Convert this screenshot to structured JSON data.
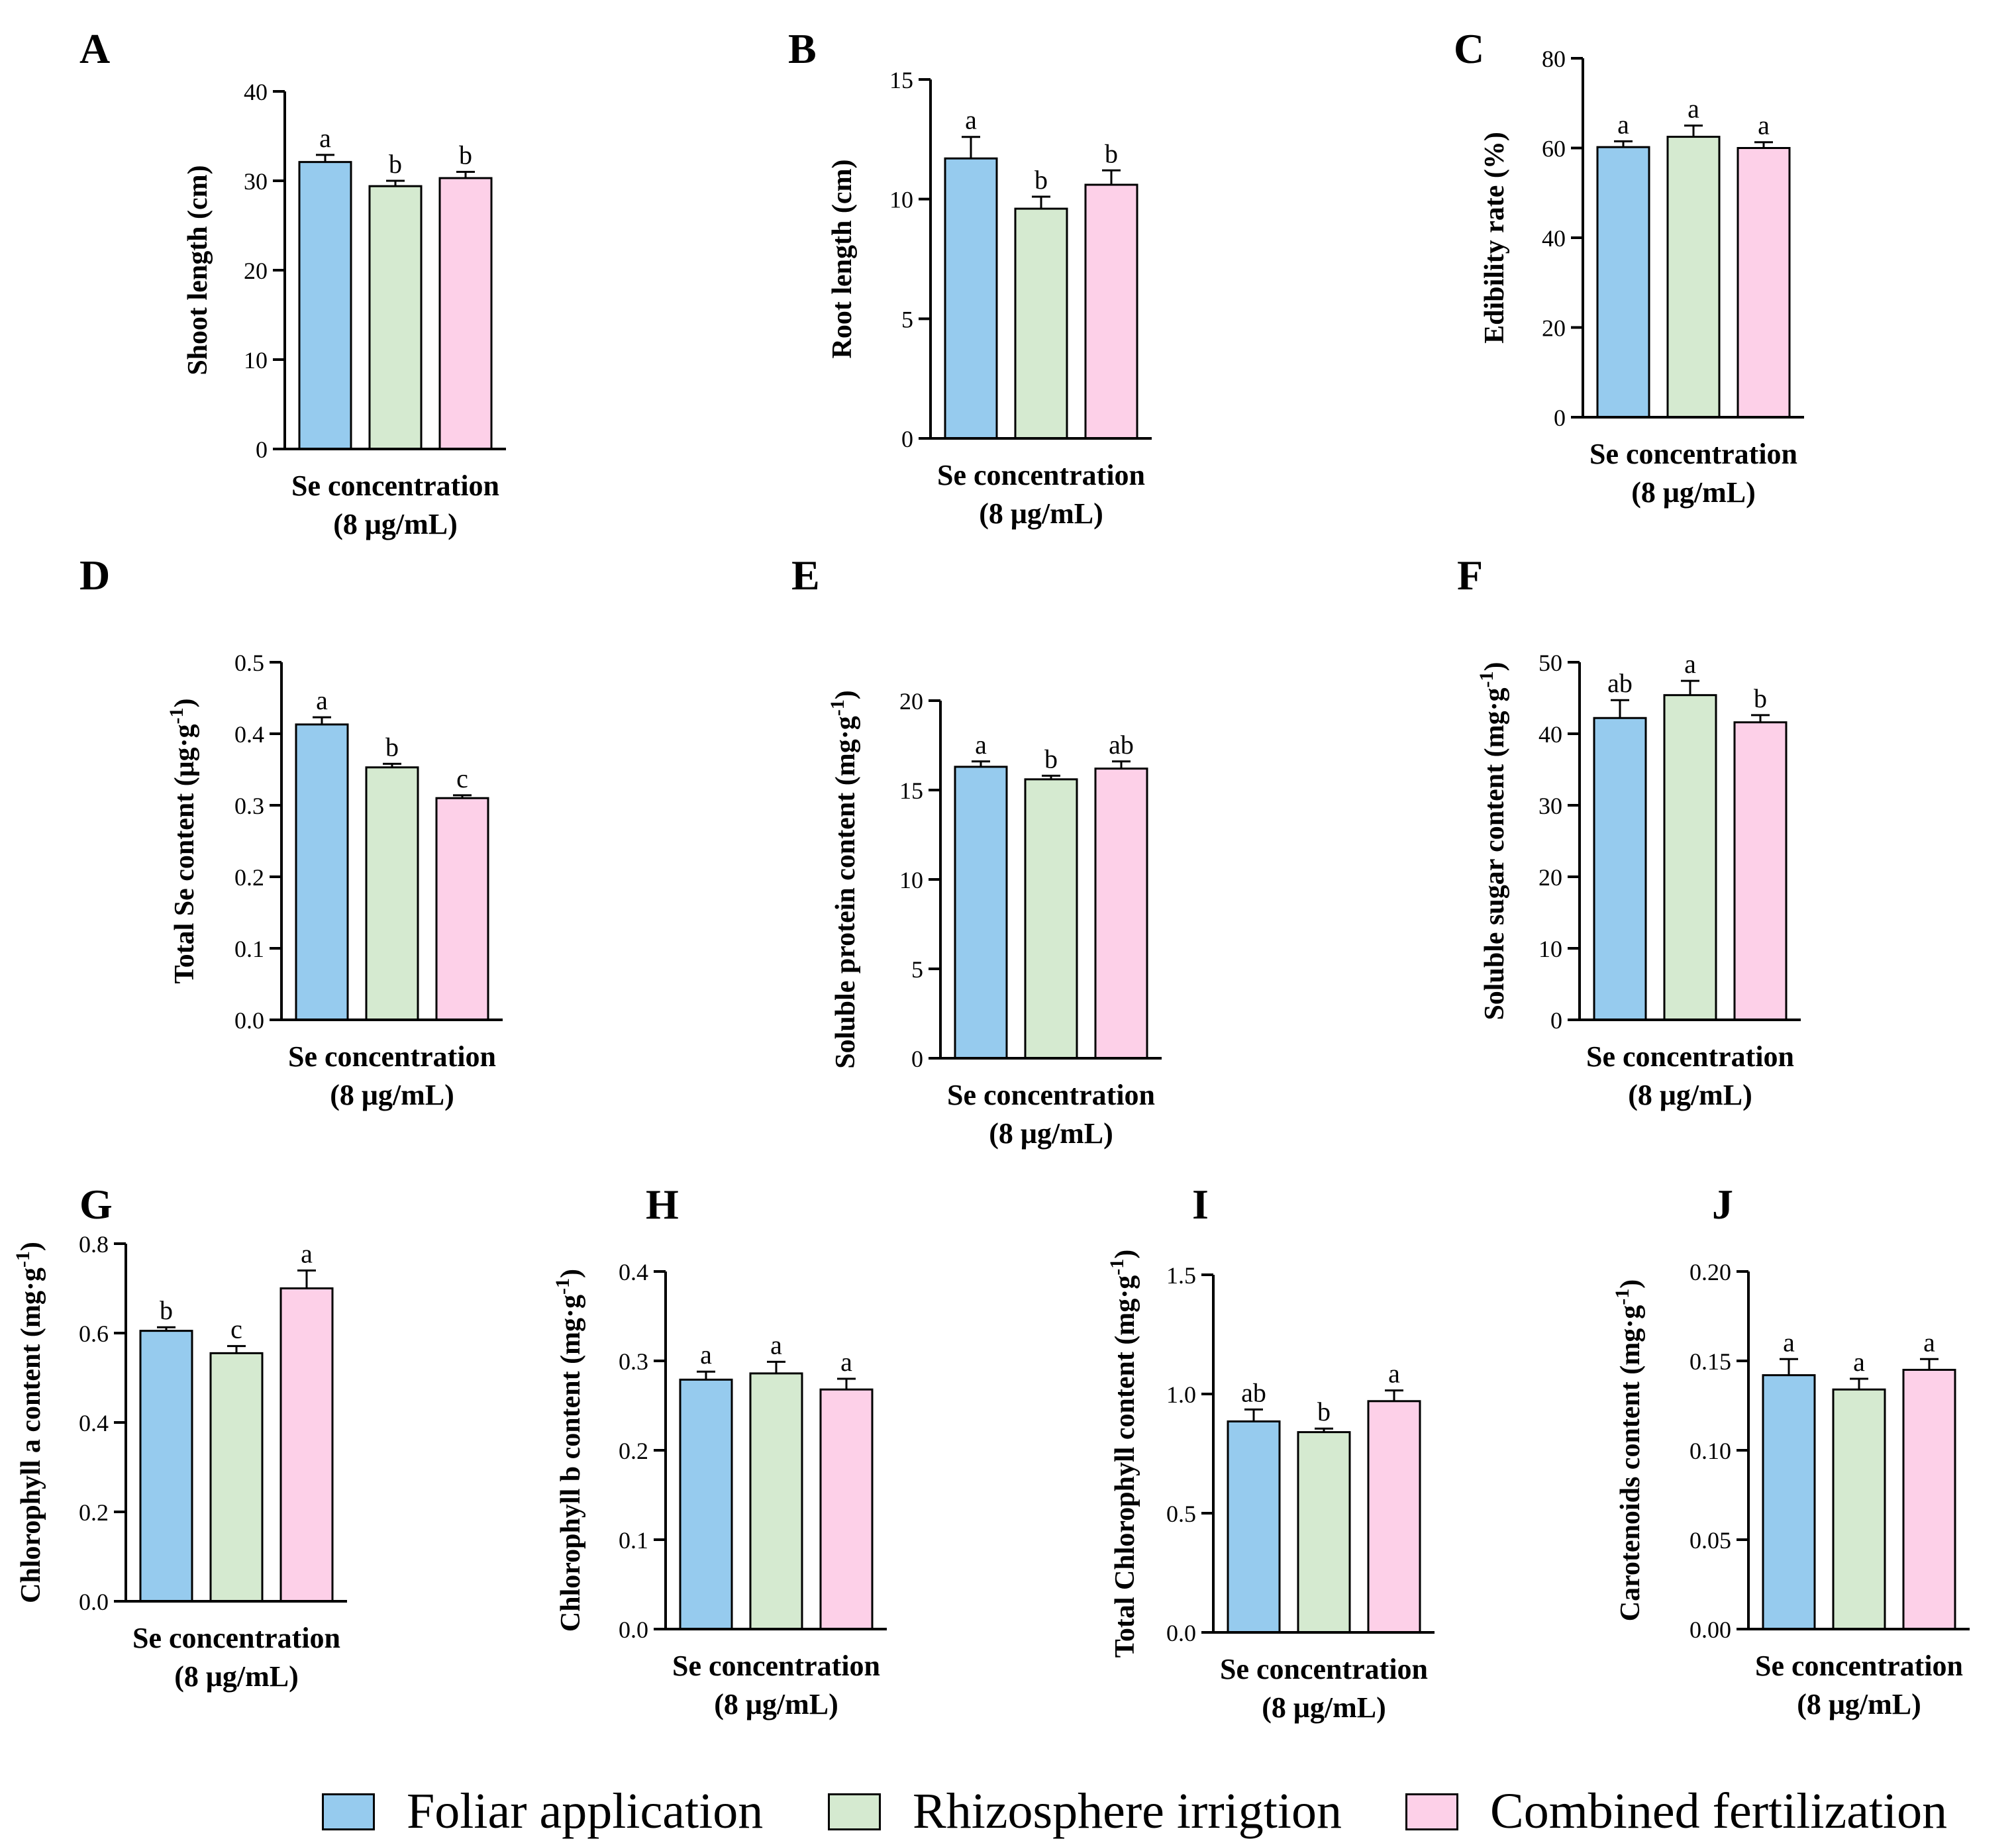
{
  "figure": {
    "legend": [
      {
        "name": "Foliar application",
        "color": "#96cbee"
      },
      {
        "name": "Rhizosphere irrigtion",
        "color": "#d5ead0"
      },
      {
        "name": "Combined fertilization",
        "color": "#fdd0e8"
      }
    ]
  },
  "chart_data": [
    {
      "panel": "A",
      "type": "bar",
      "ylabel": "Shoot length (cm)",
      "xlabel": [
        "Se concentration",
        "(8 μg/mL)"
      ],
      "ylim": [
        0,
        40
      ],
      "yticks": [
        "0",
        "10",
        "20",
        "30",
        "40"
      ],
      "values": [
        32.1,
        29.4,
        30.3
      ],
      "errors": [
        0.8,
        0.6,
        0.7
      ],
      "letters": [
        "a",
        "b",
        "b"
      ]
    },
    {
      "panel": "B",
      "type": "bar",
      "ylabel": "Root length (cm)",
      "xlabel": [
        "Se concentration",
        "(8 μg/mL)"
      ],
      "ylim": [
        0,
        15
      ],
      "yticks": [
        "0",
        "5",
        "10",
        "15"
      ],
      "values": [
        11.7,
        9.6,
        10.6
      ],
      "errors": [
        0.9,
        0.5,
        0.6
      ],
      "letters": [
        "a",
        "b",
        "b"
      ]
    },
    {
      "panel": "C",
      "type": "bar",
      "ylabel": "Edibility rate (%)",
      "xlabel": [
        "Se concentration",
        "(8 μg/mL)"
      ],
      "ylim": [
        0,
        80
      ],
      "yticks": [
        "0",
        "20",
        "40",
        "60",
        "80"
      ],
      "values": [
        60.2,
        62.5,
        60.0
      ],
      "errors": [
        1.3,
        2.5,
        1.3
      ],
      "letters": [
        "a",
        "a",
        "a"
      ]
    },
    {
      "panel": "D",
      "type": "bar",
      "ylabel": "Total Se content (μg·g",
      "ylabel_sup": "-1",
      "ylabel_end": ")",
      "xlabel": [
        "Se concentration",
        "(8 μg/mL)"
      ],
      "ylim": [
        0,
        0.5
      ],
      "yticks": [
        "0.0",
        "0.1",
        "0.2",
        "0.3",
        "0.4",
        "0.5"
      ],
      "values": [
        0.413,
        0.353,
        0.31
      ],
      "errors": [
        0.01,
        0.005,
        0.004
      ],
      "letters": [
        "a",
        "b",
        "c"
      ]
    },
    {
      "panel": "E",
      "type": "bar",
      "ylabel": "Soluble protein content (mg·g",
      "ylabel_sup": "-1",
      "ylabel_end": ")",
      "xlabel": [
        "Se concentration",
        "(8 μg/mL)"
      ],
      "ylim": [
        0,
        20
      ],
      "yticks": [
        "0",
        "5",
        "10",
        "15",
        "20"
      ],
      "values": [
        16.3,
        15.6,
        16.2
      ],
      "errors": [
        0.3,
        0.2,
        0.4
      ],
      "letters": [
        "a",
        "b",
        "ab"
      ]
    },
    {
      "panel": "F",
      "type": "bar",
      "ylabel": "Soluble sugar content (mg·g",
      "ylabel_sup": "-1",
      "ylabel_end": ")",
      "xlabel": [
        "Se concentration",
        "(8 μg/mL)"
      ],
      "ylim": [
        0,
        50
      ],
      "yticks": [
        "0",
        "10",
        "20",
        "30",
        "40",
        "50"
      ],
      "values": [
        42.2,
        45.4,
        41.6
      ],
      "errors": [
        2.5,
        2.0,
        1.0
      ],
      "letters": [
        "ab",
        "a",
        "b"
      ]
    },
    {
      "panel": "G",
      "type": "bar",
      "ylabel": "Chlorophyll a content (mg·g",
      "ylabel_sup": "-1",
      "ylabel_end": ")",
      "xlabel": [
        "Se concentration",
        "(8 μg/mL)"
      ],
      "ylim": [
        0,
        0.8
      ],
      "yticks": [
        "0.0",
        "0.2",
        "0.4",
        "0.6",
        "0.8"
      ],
      "values": [
        0.605,
        0.555,
        0.7
      ],
      "errors": [
        0.008,
        0.016,
        0.04
      ],
      "letters": [
        "b",
        "c",
        "a"
      ]
    },
    {
      "panel": "H",
      "type": "bar",
      "ylabel": "Chlorophyll b content (mg·g",
      "ylabel_sup": "-1",
      "ylabel_end": ")",
      "xlabel": [
        "Se concentration",
        "(8 μg/mL)"
      ],
      "ylim": [
        0,
        0.4
      ],
      "yticks": [
        "0.0",
        "0.1",
        "0.2",
        "0.3",
        "0.4"
      ],
      "values": [
        0.279,
        0.286,
        0.268
      ],
      "errors": [
        0.009,
        0.013,
        0.012
      ],
      "letters": [
        "a",
        "a",
        "a"
      ]
    },
    {
      "panel": "I",
      "type": "bar",
      "ylabel": "Total Chlorophyll content (mg·g",
      "ylabel_sup": "-1",
      "ylabel_end": ")",
      "xlabel": [
        "Se concentration",
        "(8 μg/mL)"
      ],
      "ylim": [
        0,
        1.5
      ],
      "yticks": [
        "0.0",
        "0.5",
        "1.0",
        "1.5"
      ],
      "values": [
        0.885,
        0.84,
        0.97
      ],
      "errors": [
        0.05,
        0.015,
        0.045
      ],
      "letters": [
        "ab",
        "b",
        "a"
      ]
    },
    {
      "panel": "J",
      "type": "bar",
      "ylabel": "Carotenoids content (mg·g",
      "ylabel_sup": "-1",
      "ylabel_end": ")",
      "xlabel": [
        "Se concentration",
        "(8 μg/mL)"
      ],
      "ylim": [
        0,
        0.2
      ],
      "yticks": [
        "0.00",
        "0.05",
        "0.10",
        "0.15",
        "0.20"
      ],
      "values": [
        0.142,
        0.134,
        0.145
      ],
      "errors": [
        0.009,
        0.006,
        0.006
      ],
      "letters": [
        "a",
        "a",
        "a"
      ]
    }
  ]
}
